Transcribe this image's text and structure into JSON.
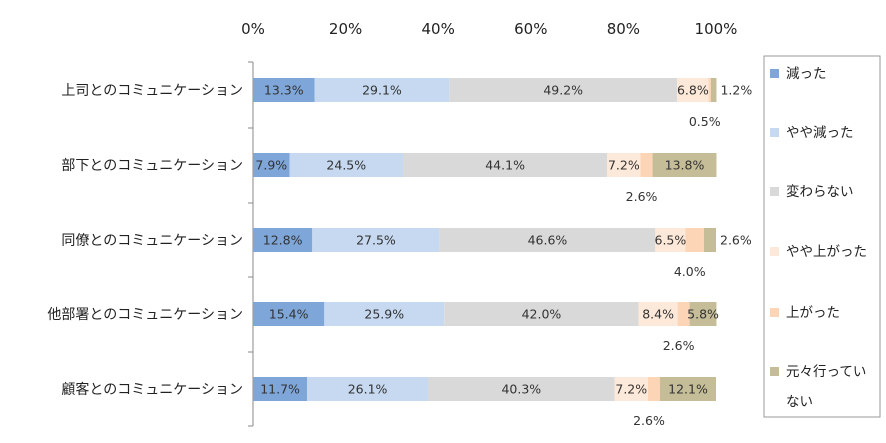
{
  "chart_data": {
    "type": "bar",
    "orientation": "horizontal",
    "stacked": true,
    "percent": true,
    "xlim": [
      0,
      100
    ],
    "x_ticks": [
      "0%",
      "20%",
      "40%",
      "60%",
      "80%",
      "100%"
    ],
    "categories": [
      "上司とのコミュニケーション",
      "部下とのコミュニケーション",
      "同僚とのコミュニケーション",
      "他部署とのコミュニケーション",
      "顧客とのコミュニケーション"
    ],
    "series": [
      {
        "name": "減った",
        "color": "#7ea6d8",
        "values": [
          13.3,
          7.9,
          12.8,
          15.4,
          11.7
        ]
      },
      {
        "name": "やや減った",
        "color": "#c6d9f1",
        "values": [
          29.1,
          24.5,
          27.5,
          25.9,
          26.1
        ]
      },
      {
        "name": "変わらない",
        "color": "#d9d9d9",
        "values": [
          49.2,
          44.1,
          46.6,
          42.0,
          40.3
        ]
      },
      {
        "name": "やや上がった",
        "color": "#fde9d9",
        "values": [
          6.8,
          7.2,
          6.5,
          8.4,
          7.2
        ]
      },
      {
        "name": "上がった",
        "color": "#fbd5b5",
        "values": [
          0.5,
          2.6,
          4.0,
          2.6,
          2.6
        ]
      },
      {
        "name": "元々行っていない",
        "color": "#c4bd97",
        "values": [
          1.2,
          13.8,
          2.6,
          5.8,
          12.1
        ]
      }
    ],
    "labels": [
      [
        "13.3%",
        "29.1%",
        "49.2%",
        "6.8%",
        "0.5%",
        "1.2%"
      ],
      [
        "7.9%",
        "24.5%",
        "44.1%",
        "7.2%",
        "2.6%",
        "13.8%"
      ],
      [
        "12.8%",
        "27.5%",
        "46.6%",
        "6.5%",
        "4.0%",
        "2.6%"
      ],
      [
        "15.4%",
        "25.9%",
        "42.0%",
        "8.4%",
        "2.6%",
        "5.8%"
      ],
      [
        "11.7%",
        "26.1%",
        "40.3%",
        "7.2%",
        "2.6%",
        "12.1%"
      ]
    ],
    "legend_position": "right"
  }
}
